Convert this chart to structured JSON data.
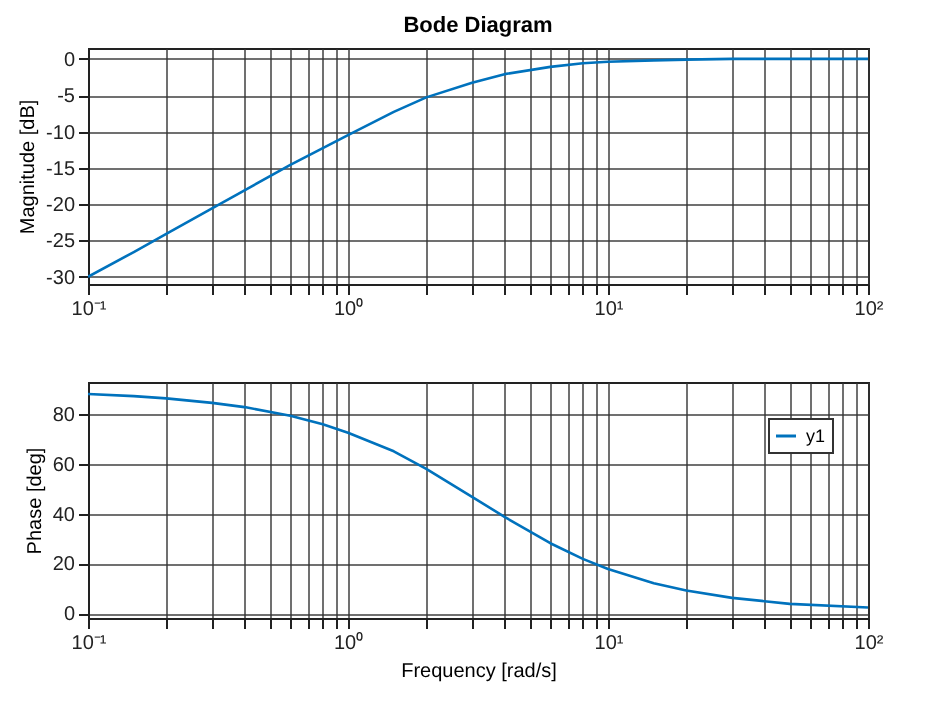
{
  "chart_data": [
    {
      "type": "line",
      "title": "Bode Diagram",
      "ylabel": "Magnitude [dB]",
      "log": "x",
      "grid": true,
      "x": [
        0.1,
        0.15,
        0.2,
        0.3,
        0.4,
        0.6,
        0.8,
        1,
        1.5,
        2,
        3,
        4,
        6,
        8,
        10,
        15,
        20,
        30,
        50,
        100
      ],
      "series": [
        {
          "color": "#0072bd",
          "values": [
            -30,
            -26.6,
            -24.1,
            -20.6,
            -18.1,
            -14.6,
            -12.3,
            -10.5,
            -7.3,
            -5.3,
            -3.3,
            -2.1,
            -1.1,
            -0.6,
            -0.4,
            -0.2,
            -0.1,
            0,
            0,
            0
          ]
        }
      ],
      "xlim": [
        0.1,
        100
      ],
      "ylim": [
        -31,
        1.5
      ],
      "xticks": [
        {
          "value": 0.1,
          "label": "10⁻¹"
        },
        {
          "value": 0.2,
          "label": null
        },
        {
          "value": 0.3,
          "label": null
        },
        {
          "value": 0.4,
          "label": null
        },
        {
          "value": 0.5,
          "label": null
        },
        {
          "value": 0.6,
          "label": null
        },
        {
          "value": 0.7,
          "label": null
        },
        {
          "value": 0.8,
          "label": null
        },
        {
          "value": 0.9,
          "label": null
        },
        {
          "value": 1,
          "label": "10⁰"
        },
        {
          "value": 2,
          "label": null
        },
        {
          "value": 3,
          "label": null
        },
        {
          "value": 4,
          "label": null
        },
        {
          "value": 5,
          "label": null
        },
        {
          "value": 6,
          "label": null
        },
        {
          "value": 7,
          "label": null
        },
        {
          "value": 8,
          "label": null
        },
        {
          "value": 9,
          "label": null
        },
        {
          "value": 10,
          "label": "10¹"
        },
        {
          "value": 20,
          "label": null
        },
        {
          "value": 30,
          "label": null
        },
        {
          "value": 40,
          "label": null
        },
        {
          "value": 50,
          "label": null
        },
        {
          "value": 60,
          "label": null
        },
        {
          "value": 70,
          "label": null
        },
        {
          "value": 80,
          "label": null
        },
        {
          "value": 90,
          "label": null
        },
        {
          "value": 100,
          "label": "10²"
        }
      ],
      "yticks": [
        -30,
        -25,
        -20,
        -15,
        -10,
        -5,
        0
      ]
    },
    {
      "type": "line",
      "xlabel": "Frequency [rad/s]",
      "ylabel": "Phase [deg]",
      "log": "x",
      "grid": true,
      "legend": "top right",
      "x": [
        0.1,
        0.15,
        0.2,
        0.3,
        0.4,
        0.6,
        0.8,
        1,
        1.5,
        2,
        3,
        4,
        6,
        8,
        10,
        15,
        20,
        30,
        50,
        100
      ],
      "series": [
        {
          "name": "y1",
          "color": "#0072bd",
          "values": [
            88.2,
            87.3,
            86.4,
            84.6,
            82.9,
            79.4,
            76,
            72.6,
            65.1,
            58,
            46.8,
            38.7,
            28.1,
            21.8,
            17.7,
            12,
            9.1,
            6.1,
            3.7,
            2.2
          ]
        }
      ],
      "xlim": [
        0.1,
        100
      ],
      "ylim": [
        -2,
        93
      ],
      "xticks": [
        {
          "value": 0.1,
          "label": "10⁻¹"
        },
        {
          "value": 0.2,
          "label": null
        },
        {
          "value": 0.3,
          "label": null
        },
        {
          "value": 0.4,
          "label": null
        },
        {
          "value": 0.5,
          "label": null
        },
        {
          "value": 0.6,
          "label": null
        },
        {
          "value": 0.7,
          "label": null
        },
        {
          "value": 0.8,
          "label": null
        },
        {
          "value": 0.9,
          "label": null
        },
        {
          "value": 1,
          "label": "10⁰"
        },
        {
          "value": 2,
          "label": null
        },
        {
          "value": 3,
          "label": null
        },
        {
          "value": 4,
          "label": null
        },
        {
          "value": 5,
          "label": null
        },
        {
          "value": 6,
          "label": null
        },
        {
          "value": 7,
          "label": null
        },
        {
          "value": 8,
          "label": null
        },
        {
          "value": 9,
          "label": null
        },
        {
          "value": 10,
          "label": "10¹"
        },
        {
          "value": 20,
          "label": null
        },
        {
          "value": 30,
          "label": null
        },
        {
          "value": 40,
          "label": null
        },
        {
          "value": 50,
          "label": null
        },
        {
          "value": 60,
          "label": null
        },
        {
          "value": 70,
          "label": null
        },
        {
          "value": 80,
          "label": null
        },
        {
          "value": 90,
          "label": null
        },
        {
          "value": 100,
          "label": "10²"
        }
      ],
      "yticks": [
        0,
        20,
        40,
        60,
        80
      ]
    }
  ]
}
